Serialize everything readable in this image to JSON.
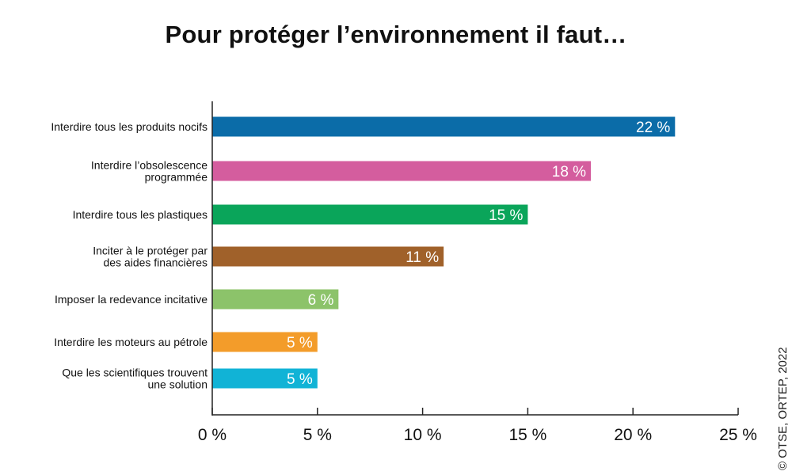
{
  "chart_data": {
    "type": "bar",
    "orientation": "horizontal",
    "title": "Pour protéger l’environnement il faut…",
    "categories": [
      [
        "Interdire tous les produits nocifs"
      ],
      [
        "Interdire l’obsolescence",
        "programmée"
      ],
      [
        "Interdire tous les plastiques"
      ],
      [
        "Inciter à le protéger par",
        "des aides financières"
      ],
      [
        "Imposer la redevance incitative"
      ],
      [
        "Interdire les moteurs au pétrole"
      ],
      [
        "Que les scientifiques trouvent",
        "une solution"
      ]
    ],
    "values": [
      22,
      18,
      15,
      11,
      6,
      5,
      5
    ],
    "value_labels": [
      "22 %",
      "18 %",
      "15 %",
      "11 %",
      "6 %",
      "5 %",
      "5 %"
    ],
    "colors": [
      "#0b6ca8",
      "#d45d9e",
      "#0aa55a",
      "#a0612a",
      "#8cc36a",
      "#f39c2a",
      "#11b3d6"
    ],
    "xlim": [
      0,
      25
    ],
    "xticks": [
      0,
      5,
      10,
      15,
      20,
      25
    ],
    "xtick_labels": [
      "0 %",
      "5 %",
      "10 %",
      "15 %",
      "20 %",
      "25 %"
    ],
    "xlabel": "",
    "ylabel": "",
    "grid": false,
    "legend": "none"
  },
  "credit": "© OTSE, ORTEP, 2022"
}
